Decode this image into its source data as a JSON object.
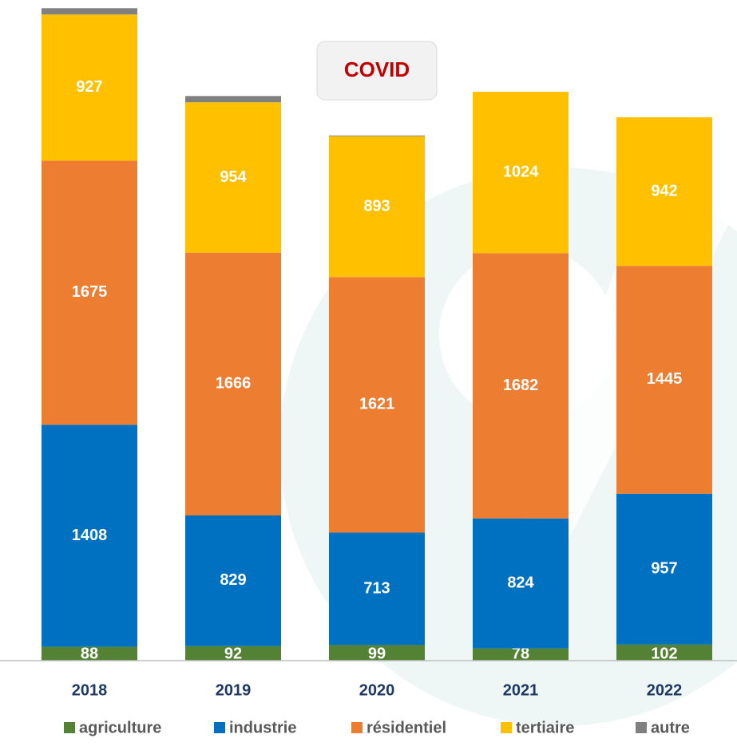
{
  "chart_data": {
    "type": "stacked_bar",
    "annotation": "COVID",
    "categories": [
      "2018",
      "2019",
      "2020",
      "2021",
      "2022"
    ],
    "series": [
      {
        "name": "agriculture",
        "color": "#548235",
        "values": [
          88,
          92,
          99,
          78,
          102
        ],
        "data_labels": true
      },
      {
        "name": "industrie",
        "color": "#0070c0",
        "values": [
          1408,
          829,
          713,
          824,
          957
        ],
        "data_labels": true
      },
      {
        "name": "résidentiel",
        "color": "#ed7d31",
        "values": [
          1675,
          1666,
          1621,
          1682,
          1445
        ],
        "data_labels": true
      },
      {
        "name": "tertiaire",
        "color": "#ffc000",
        "values": [
          927,
          954,
          893,
          1024,
          942
        ],
        "data_labels": true
      },
      {
        "name": "autre",
        "color": "#808080",
        "values": [
          40,
          40,
          5,
          0,
          0
        ],
        "data_labels": false
      }
    ],
    "ylim": [
      0,
      4190
    ]
  }
}
